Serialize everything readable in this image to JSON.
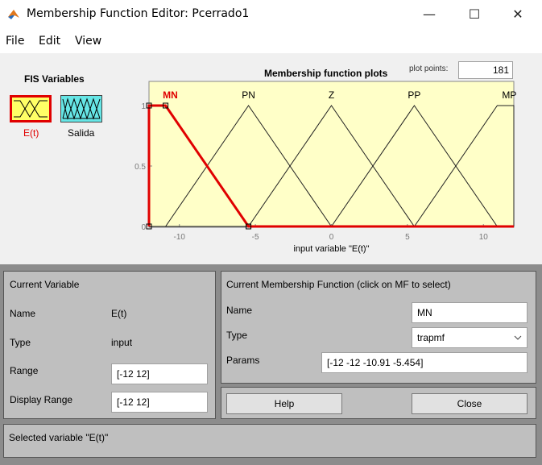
{
  "window": {
    "title": "Membership Function Editor: Pcerrado1",
    "minimize_glyph": "—",
    "maximize_glyph": "☐",
    "close_glyph": "✕"
  },
  "menu": {
    "items": [
      "File",
      "Edit",
      "View"
    ]
  },
  "fis": {
    "title": "FIS Variables",
    "input_label": "E(t)",
    "output_label": "Salida",
    "input_color": "#ffff66",
    "output_color": "#66e6e6",
    "selected_color": "#e00000"
  },
  "plot": {
    "title": "Membership function plots",
    "points_label": "plot points:",
    "points_value": "181",
    "xlabel": "input variable \"E(t)\"",
    "xticks": [
      "-10",
      "-5",
      "0",
      "5",
      "10"
    ],
    "yticks": [
      "0",
      "0.5",
      "1"
    ],
    "mf_labels": [
      "MN",
      "PN",
      "Z",
      "PP",
      "MP"
    ],
    "background": "#ffffc8"
  },
  "chart_data": {
    "type": "line",
    "xlim": [
      -12,
      12
    ],
    "ylim": [
      0,
      1
    ],
    "xlabel": "input variable \"E(t)\"",
    "series": [
      {
        "name": "MN",
        "x": [
          -12,
          -12,
          -10.91,
          -5.454,
          12
        ],
        "y": [
          0,
          1,
          1,
          0,
          0
        ],
        "selected": true
      },
      {
        "name": "PN",
        "x": [
          -12,
          -10.91,
          -5.454,
          0,
          12
        ],
        "y": [
          0,
          0,
          1,
          0,
          0
        ]
      },
      {
        "name": "Z",
        "x": [
          -12,
          -5.454,
          0,
          5.454,
          12
        ],
        "y": [
          0,
          0,
          1,
          0,
          0
        ]
      },
      {
        "name": "PP",
        "x": [
          -12,
          0,
          5.454,
          10.91,
          12
        ],
        "y": [
          0,
          0,
          1,
          0,
          0
        ]
      },
      {
        "name": "MP",
        "x": [
          -12,
          5.454,
          10.91,
          12,
          12
        ],
        "y": [
          0,
          0,
          1,
          1,
          0
        ]
      }
    ]
  },
  "current_variable": {
    "title": "Current Variable",
    "name_label": "Name",
    "name_value": "E(t)",
    "type_label": "Type",
    "type_value": "input",
    "range_label": "Range",
    "range_value": "[-12 12]",
    "display_range_label": "Display Range",
    "display_range_value": "[-12 12]"
  },
  "current_mf": {
    "title": "Current Membership Function (click on MF to select)",
    "name_label": "Name",
    "name_value": "MN",
    "type_label": "Type",
    "type_value": "trapmf",
    "params_label": "Params",
    "params_value": "[-12 -12 -10.91 -5.454]"
  },
  "buttons": {
    "help": "Help",
    "close": "Close"
  },
  "status": {
    "text": "Selected variable \"E(t)\""
  }
}
